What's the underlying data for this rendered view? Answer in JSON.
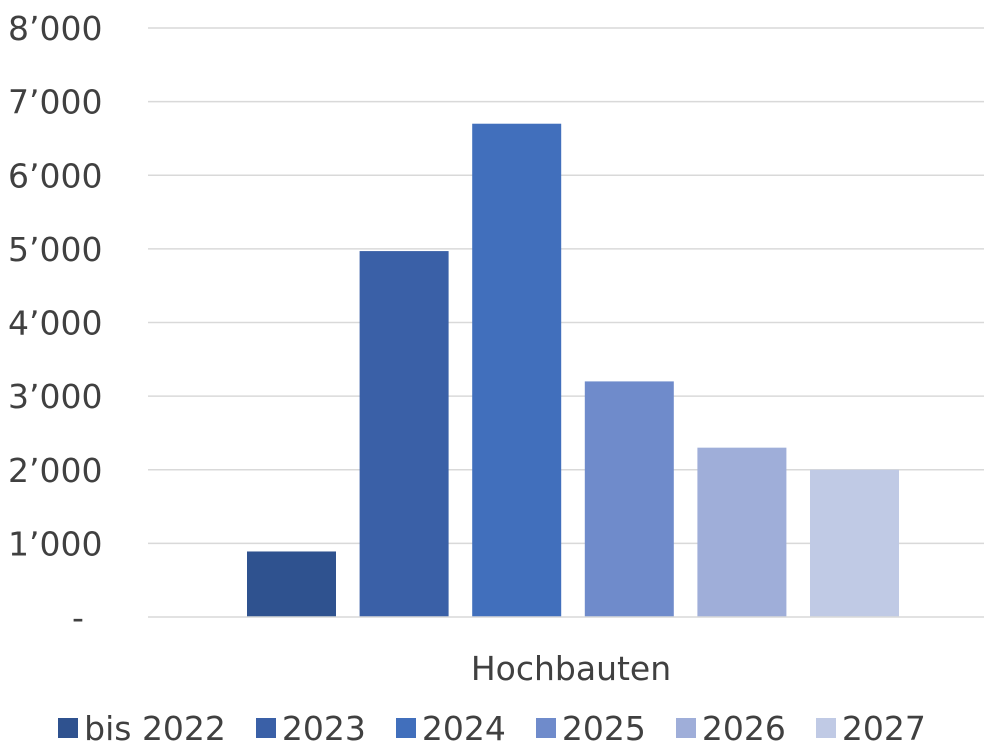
{
  "chart_data": {
    "type": "bar",
    "categories": [
      "Hochbauten"
    ],
    "series": [
      {
        "name": "bis 2022",
        "values": [
          890
        ],
        "color": "#2f528f"
      },
      {
        "name": "2023",
        "values": [
          4970
        ],
        "color": "#3a60a7"
      },
      {
        "name": "2024",
        "values": [
          6700
        ],
        "color": "#416fbc"
      },
      {
        "name": "2025",
        "values": [
          3200
        ],
        "color": "#6f8bcb"
      },
      {
        "name": "2026",
        "values": [
          2300
        ],
        "color": "#9faed9"
      },
      {
        "name": "2027",
        "values": [
          2000
        ],
        "color": "#c0cae5"
      }
    ],
    "yticks": [
      {
        "value": 0,
        "label": "-"
      },
      {
        "value": 1000,
        "label": "1’000"
      },
      {
        "value": 2000,
        "label": "2’000"
      },
      {
        "value": 3000,
        "label": "3’000"
      },
      {
        "value": 4000,
        "label": "4’000"
      },
      {
        "value": 5000,
        "label": "5’000"
      },
      {
        "value": 6000,
        "label": "6’000"
      },
      {
        "value": 7000,
        "label": "7’000"
      },
      {
        "value": 8000,
        "label": "8’000"
      }
    ],
    "ylim": [
      0,
      8000
    ],
    "grid": true,
    "legend_position": "bottom"
  }
}
